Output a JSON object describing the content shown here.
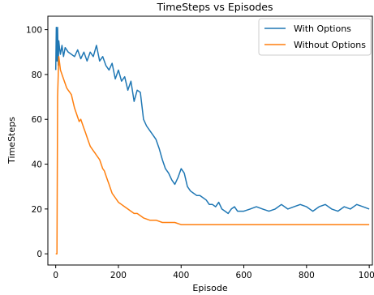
{
  "chart_data": {
    "type": "line",
    "title": "TimeSteps vs Episodes",
    "xlabel": "Episode",
    "ylabel": "TimeSteps",
    "xlim": [
      -25,
      1010
    ],
    "ylim": [
      -5,
      106
    ],
    "xticks": [
      0,
      200,
      400,
      600,
      800,
      1000
    ],
    "yticks": [
      0,
      20,
      40,
      60,
      80,
      100
    ],
    "grid": false,
    "legend_position": "top-right",
    "series": [
      {
        "name": "With Options",
        "color": "#1f77b4",
        "points": [
          [
            0,
            82
          ],
          [
            2,
            101
          ],
          [
            4,
            86
          ],
          [
            6,
            101
          ],
          [
            8,
            84
          ],
          [
            10,
            95
          ],
          [
            12,
            92
          ],
          [
            15,
            89
          ],
          [
            20,
            93
          ],
          [
            25,
            88
          ],
          [
            30,
            92
          ],
          [
            40,
            90
          ],
          [
            50,
            89
          ],
          [
            60,
            88
          ],
          [
            70,
            91
          ],
          [
            80,
            87
          ],
          [
            90,
            90
          ],
          [
            100,
            86
          ],
          [
            110,
            90
          ],
          [
            120,
            88
          ],
          [
            130,
            93
          ],
          [
            140,
            86
          ],
          [
            150,
            88
          ],
          [
            160,
            84
          ],
          [
            170,
            82
          ],
          [
            180,
            85
          ],
          [
            190,
            78
          ],
          [
            200,
            82
          ],
          [
            210,
            77
          ],
          [
            220,
            79
          ],
          [
            230,
            73
          ],
          [
            240,
            77
          ],
          [
            250,
            68
          ],
          [
            260,
            73
          ],
          [
            270,
            72
          ],
          [
            280,
            60
          ],
          [
            290,
            57
          ],
          [
            300,
            55
          ],
          [
            310,
            53
          ],
          [
            320,
            51
          ],
          [
            330,
            47
          ],
          [
            340,
            42
          ],
          [
            350,
            38
          ],
          [
            360,
            36
          ],
          [
            370,
            33
          ],
          [
            380,
            31
          ],
          [
            390,
            34
          ],
          [
            400,
            38
          ],
          [
            410,
            36
          ],
          [
            420,
            30
          ],
          [
            430,
            28
          ],
          [
            440,
            27
          ],
          [
            450,
            26
          ],
          [
            460,
            26
          ],
          [
            470,
            25
          ],
          [
            480,
            24
          ],
          [
            490,
            22
          ],
          [
            500,
            22
          ],
          [
            510,
            21
          ],
          [
            520,
            23
          ],
          [
            530,
            20
          ],
          [
            540,
            19
          ],
          [
            550,
            18
          ],
          [
            560,
            20
          ],
          [
            570,
            21
          ],
          [
            580,
            19
          ],
          [
            600,
            19
          ],
          [
            620,
            20
          ],
          [
            640,
            21
          ],
          [
            660,
            20
          ],
          [
            680,
            19
          ],
          [
            700,
            20
          ],
          [
            720,
            22
          ],
          [
            740,
            20
          ],
          [
            760,
            21
          ],
          [
            780,
            22
          ],
          [
            800,
            21
          ],
          [
            820,
            19
          ],
          [
            840,
            21
          ],
          [
            860,
            22
          ],
          [
            880,
            20
          ],
          [
            900,
            19
          ],
          [
            920,
            21
          ],
          [
            940,
            20
          ],
          [
            960,
            22
          ],
          [
            980,
            21
          ],
          [
            1000,
            20
          ]
        ]
      },
      {
        "name": "Without Options",
        "color": "#ff7f0e",
        "points": [
          [
            0,
            0
          ],
          [
            4,
            0
          ],
          [
            5,
            35
          ],
          [
            6,
            70
          ],
          [
            8,
            80
          ],
          [
            10,
            88
          ],
          [
            15,
            82
          ],
          [
            20,
            80
          ],
          [
            25,
            78
          ],
          [
            30,
            76
          ],
          [
            35,
            74
          ],
          [
            40,
            73
          ],
          [
            45,
            72
          ],
          [
            50,
            71
          ],
          [
            55,
            68
          ],
          [
            60,
            65
          ],
          [
            65,
            63
          ],
          [
            70,
            61
          ],
          [
            75,
            59
          ],
          [
            80,
            60
          ],
          [
            85,
            58
          ],
          [
            90,
            56
          ],
          [
            95,
            54
          ],
          [
            100,
            52
          ],
          [
            105,
            50
          ],
          [
            110,
            48
          ],
          [
            115,
            47
          ],
          [
            120,
            46
          ],
          [
            125,
            45
          ],
          [
            130,
            44
          ],
          [
            135,
            43
          ],
          [
            140,
            42
          ],
          [
            145,
            40
          ],
          [
            150,
            38
          ],
          [
            155,
            37
          ],
          [
            160,
            35
          ],
          [
            165,
            33
          ],
          [
            170,
            31
          ],
          [
            175,
            29
          ],
          [
            180,
            27
          ],
          [
            185,
            26
          ],
          [
            190,
            25
          ],
          [
            200,
            23
          ],
          [
            210,
            22
          ],
          [
            220,
            21
          ],
          [
            230,
            20
          ],
          [
            240,
            19
          ],
          [
            250,
            18
          ],
          [
            260,
            18
          ],
          [
            280,
            16
          ],
          [
            300,
            15
          ],
          [
            320,
            15
          ],
          [
            340,
            14
          ],
          [
            360,
            14
          ],
          [
            380,
            14
          ],
          [
            400,
            13
          ],
          [
            420,
            13
          ],
          [
            440,
            13
          ],
          [
            460,
            13
          ],
          [
            480,
            13
          ],
          [
            500,
            13
          ],
          [
            520,
            13
          ],
          [
            540,
            13
          ],
          [
            560,
            13
          ],
          [
            580,
            13
          ],
          [
            600,
            13
          ],
          [
            620,
            13
          ],
          [
            640,
            13
          ],
          [
            660,
            13
          ],
          [
            680,
            13
          ],
          [
            700,
            13
          ],
          [
            720,
            13
          ],
          [
            740,
            13
          ],
          [
            760,
            13
          ],
          [
            780,
            13
          ],
          [
            800,
            13
          ],
          [
            820,
            13
          ],
          [
            840,
            13
          ],
          [
            860,
            13
          ],
          [
            880,
            13
          ],
          [
            900,
            13
          ],
          [
            920,
            13
          ],
          [
            940,
            13
          ],
          [
            960,
            13
          ],
          [
            980,
            13
          ],
          [
            1000,
            13
          ]
        ]
      }
    ]
  }
}
